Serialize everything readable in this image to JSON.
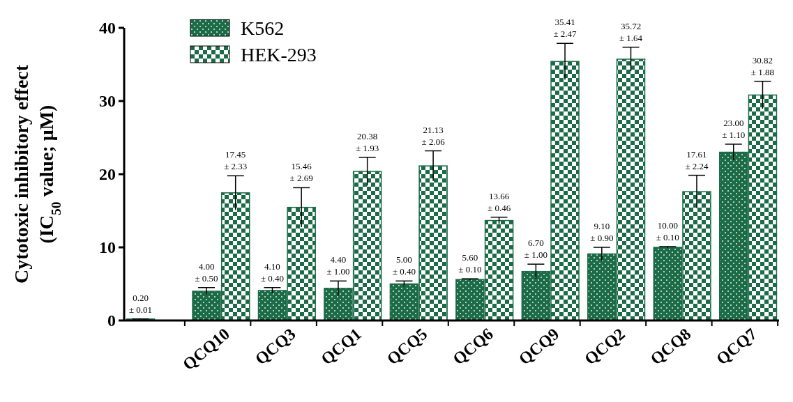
{
  "chart_data": {
    "type": "bar",
    "ylabel": "Cytotoxic inhibitory effect\n(IC$_{50}$ value; μM)",
    "categories": [
      null,
      "QCQ10",
      "QCQ3",
      "QCQ1",
      "QCQ5",
      "QCQ6",
      "QCQ9",
      "QCQ2",
      "QCQ8",
      "QCQ7"
    ],
    "series": [
      {
        "name": "K562",
        "color": "#1b6b46",
        "values": [
          0.2,
          4.0,
          4.1,
          4.4,
          5.0,
          5.6,
          6.7,
          9.1,
          10.0,
          23.0
        ],
        "errors": [
          0.01,
          0.5,
          0.4,
          1.0,
          0.4,
          0.1,
          1.0,
          0.9,
          0.1,
          1.1
        ],
        "value_labels": [
          "0.20\n± 0.01",
          "4.00\n± 0.50",
          "4.10\n± 0.40",
          "4.40\n± 1.00",
          "5.00\n± 0.40",
          "5.60\n± 0.10",
          "6.70\n± 1.00",
          "9.10\n± 0.90",
          "10.00\n± 0.10",
          "23.00\n± 1.10"
        ]
      },
      {
        "name": "HEK-293",
        "color": "#1b6b46",
        "values": [
          null,
          17.45,
          15.46,
          20.38,
          21.13,
          13.66,
          35.41,
          35.72,
          17.61,
          30.82
        ],
        "errors": [
          null,
          2.33,
          2.69,
          1.93,
          2.06,
          0.46,
          2.47,
          1.64,
          2.24,
          1.88
        ],
        "value_labels": [
          null,
          "17.45\n± 2.33",
          "15.46\n± 2.69",
          "20.38\n± 1.93",
          "21.13\n± 2.06",
          "13.66\n± 0.46",
          "35.41\n± 2.47",
          "35.72\n± 1.64",
          "17.61\n± 2.24",
          "30.82\n± 1.88"
        ]
      }
    ],
    "ylim": [
      0,
      40
    ],
    "yticks": [
      0,
      10,
      20,
      30,
      40
    ],
    "legend": "top left"
  }
}
